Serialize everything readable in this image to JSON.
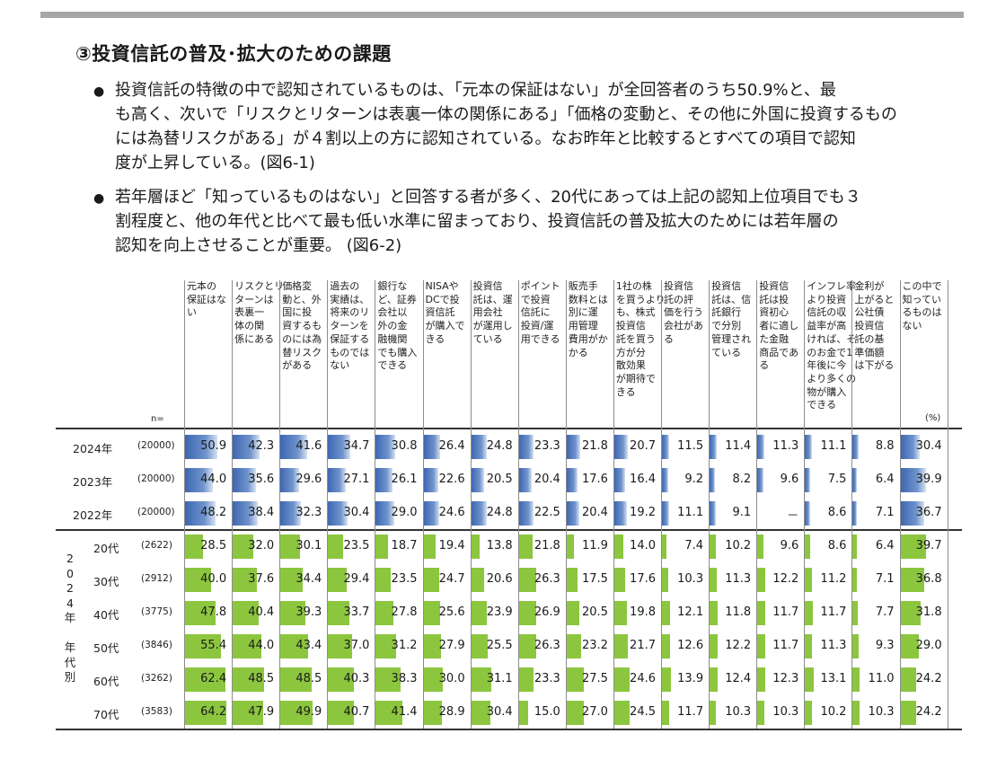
{
  "title": "③投資信託の普及･拡大のための課題",
  "bullets": [
    [
      "投資信託の特徴の中で認知されているものは、「元本の保証はない」が全回答者のうち50.9%と、最",
      "も高く、次いで「リスクとリターンは表裏一体の関係にある」「価格の変動と、その他に外国に投資するもの",
      "には為替リスクがある」が４割以上の方に認知されている。なお昨年と比較するとすべての項目で認知",
      "度が上昇している。(図6-1)"
    ],
    [
      "若年層ほど「知っているものはない」と回答する者が多く、20代にあっては上記の認知上位項目でも３",
      "割程度と、他の年代と比べて最も低い水準に留まっており、投資信託の普及拡大のためには若年層の",
      "認知を向上させることが重要。 (図6-2)"
    ]
  ],
  "n_label": "n=",
  "unit_label": "(%)",
  "group_label": [
    "2",
    "0",
    "2",
    "4",
    "年",
    "",
    "年",
    "代",
    "別"
  ],
  "colors": {
    "year_bar": "#4a72b8",
    "age_bar": "#8cc63f"
  },
  "chart_data": {
    "type": "table",
    "columns": [
      [
        "元本の",
        "保証はな",
        "い"
      ],
      [
        "リスクとリ",
        "ターンは",
        "表裏一",
        "体の関",
        "係にある"
      ],
      [
        "価格変",
        "動と、外",
        "国に投",
        "資するも",
        "のには為",
        "替リスク",
        "がある"
      ],
      [
        "過去の",
        "実績は、",
        "将来のリ",
        "ターンを",
        "保証する",
        "ものでは",
        "ない"
      ],
      [
        "銀行な",
        "ど、証券",
        "会社以",
        "外の金",
        "融機関",
        "でも購入",
        "できる"
      ],
      [
        "NISAや",
        "DCで投",
        "資信託",
        "が購入で",
        "きる"
      ],
      [
        "投資信",
        "託は、運",
        "用会社",
        "が運用し",
        "ている"
      ],
      [
        "ポイント",
        "で投資",
        "信託に",
        "投資/運",
        "用できる"
      ],
      [
        "販売手",
        "数料とは",
        "別に運",
        "用管理",
        "費用がか",
        "かる"
      ],
      [
        "1社の株",
        "を買うより",
        "も、株式",
        "投資信",
        "託を買う",
        "方が分",
        "散効果",
        "が期待で",
        "きる"
      ],
      [
        "投資信",
        "託の評",
        "価を行う",
        "会社があ",
        "る"
      ],
      [
        "投資信",
        "託は、信",
        "託銀行",
        "で分別",
        "管理され",
        "ている"
      ],
      [
        "投資信",
        "託は投",
        "資初心",
        "者に適し",
        "た金融",
        "商品であ",
        "る"
      ],
      [
        "インフレ率",
        "より投資",
        "信託の収",
        "益率が高",
        "ければ、そ",
        "のお金で1",
        "年後に今",
        "より多くの",
        "物が購入",
        "できる"
      ],
      [
        "金利が",
        "上がると",
        "公社債",
        "投資信",
        "託の基",
        "準価額",
        "は下がる"
      ],
      [
        "この中で",
        "知ってい",
        "るものは",
        "ない"
      ]
    ],
    "rows": [
      {
        "label": "2024年",
        "n": "(20000)",
        "group": "year",
        "values": [
          "50.9",
          "42.3",
          "41.6",
          "34.7",
          "30.8",
          "26.4",
          "24.8",
          "23.3",
          "21.8",
          "20.7",
          "11.5",
          "11.4",
          "11.3",
          "11.1",
          "8.8",
          "30.4"
        ]
      },
      {
        "label": "2023年",
        "n": "(20000)",
        "group": "year",
        "values": [
          "44.0",
          "35.6",
          "29.6",
          "27.1",
          "26.1",
          "22.6",
          "20.5",
          "20.4",
          "17.6",
          "16.4",
          "9.2",
          "8.2",
          "9.6",
          "7.5",
          "6.4",
          "39.9"
        ]
      },
      {
        "label": "2022年",
        "n": "(20000)",
        "group": "year",
        "values": [
          "48.2",
          "38.4",
          "32.3",
          "30.4",
          "29.0",
          "24.6",
          "24.8",
          "22.5",
          "20.4",
          "19.2",
          "11.1",
          "9.1",
          "－",
          "8.6",
          "7.1",
          "36.7"
        ]
      },
      {
        "label": "20代",
        "n": "(2622)",
        "group": "age",
        "values": [
          "28.5",
          "32.0",
          "30.1",
          "23.5",
          "18.7",
          "19.4",
          "13.8",
          "21.8",
          "11.9",
          "14.0",
          "7.4",
          "10.2",
          "9.6",
          "8.6",
          "6.4",
          "39.7"
        ]
      },
      {
        "label": "30代",
        "n": "(2912)",
        "group": "age",
        "values": [
          "40.0",
          "37.6",
          "34.4",
          "29.4",
          "23.5",
          "24.7",
          "20.6",
          "26.3",
          "17.5",
          "17.6",
          "10.3",
          "11.3",
          "12.2",
          "11.2",
          "7.1",
          "36.8"
        ]
      },
      {
        "label": "40代",
        "n": "(3775)",
        "group": "age",
        "values": [
          "47.8",
          "40.4",
          "39.3",
          "33.7",
          "27.8",
          "25.6",
          "23.9",
          "26.9",
          "20.5",
          "19.8",
          "12.1",
          "11.8",
          "11.7",
          "11.7",
          "7.7",
          "31.8"
        ]
      },
      {
        "label": "50代",
        "n": "(3846)",
        "group": "age",
        "values": [
          "55.4",
          "44.0",
          "43.4",
          "37.0",
          "31.2",
          "27.9",
          "25.5",
          "26.3",
          "23.2",
          "21.7",
          "12.6",
          "12.2",
          "11.7",
          "11.3",
          "9.3",
          "29.0"
        ]
      },
      {
        "label": "60代",
        "n": "(3262)",
        "group": "age",
        "values": [
          "62.4",
          "48.5",
          "48.5",
          "40.3",
          "38.3",
          "30.0",
          "31.1",
          "23.3",
          "27.5",
          "24.6",
          "13.9",
          "12.4",
          "12.3",
          "13.1",
          "11.0",
          "24.2"
        ]
      },
      {
        "label": "70代",
        "n": "(3583)",
        "group": "age",
        "values": [
          "64.2",
          "47.9",
          "49.9",
          "40.7",
          "41.4",
          "28.9",
          "30.4",
          "15.0",
          "27.0",
          "24.5",
          "11.7",
          "10.3",
          "10.3",
          "10.2",
          "10.3",
          "24.2"
        ]
      }
    ]
  }
}
